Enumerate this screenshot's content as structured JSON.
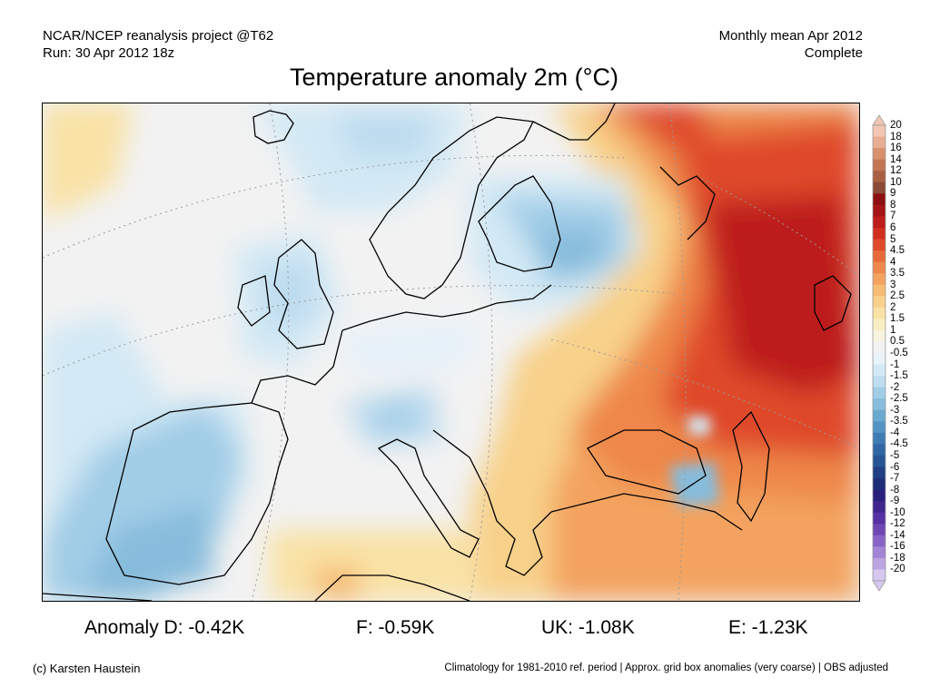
{
  "header": {
    "project": "NCAR/NCEP reanalysis project @T62",
    "run": "Run: 30 Apr 2012 18z",
    "period": "Monthly mean Apr 2012",
    "status": "Complete"
  },
  "title": "Temperature anomaly 2m (°C)",
  "map": {
    "region": "Europe",
    "variable": "2m temperature anomaly",
    "features": [
      {
        "name": "warm-anomaly-russia",
        "level": 7
      },
      {
        "name": "warm-anomaly-north-russia",
        "level": 7
      },
      {
        "name": "warm-anomaly-turkey",
        "level": 2.5
      },
      {
        "name": "warm-anomaly-balkans",
        "level": 1.5
      },
      {
        "name": "cold-anomaly-iberia",
        "level": -2.5
      },
      {
        "name": "cold-anomaly-finland",
        "level": -2
      },
      {
        "name": "cold-anomaly-uk",
        "level": -1.5
      },
      {
        "name": "cold-anomaly-alps",
        "level": -2
      }
    ]
  },
  "colorbar": {
    "labels": [
      "20",
      "18",
      "16",
      "14",
      "12",
      "10",
      "9",
      "8",
      "7",
      "6",
      "5",
      "4.5",
      "4",
      "3.5",
      "3",
      "2.5",
      "2",
      "1.5",
      "1",
      "0.5",
      "-0.5",
      "-1",
      "-1.5",
      "-2",
      "-2.5",
      "-3",
      "-3.5",
      "-4",
      "-4.5",
      "-5",
      "-6",
      "-7",
      "-8",
      "-9",
      "-10",
      "-12",
      "-14",
      "-16",
      "-18",
      "-20"
    ],
    "colors": [
      "#f3c6b2",
      "#e9ad92",
      "#d8906d",
      "#c47654",
      "#a95f42",
      "#8a4a35",
      "#8c0f12",
      "#a51517",
      "#bd1d1b",
      "#d12e22",
      "#df4a2a",
      "#e76a3a",
      "#ee874a",
      "#f3a35e",
      "#f6bc73",
      "#f8d18a",
      "#f9e2a5",
      "#f9eec3",
      "#f7f3df",
      "#f2f2f2",
      "#e7f2fa",
      "#d3e9f5",
      "#bddcef",
      "#a2cde7",
      "#87bcdc",
      "#6ca9d0",
      "#5393c3",
      "#3f7cb4",
      "#3066a5",
      "#275496",
      "#213e86",
      "#1e2d79",
      "#2a1f7d",
      "#40258f",
      "#5631a3",
      "#6e47b5",
      "#8864c7",
      "#a384d6",
      "#bca5e3",
      "#d5c7f0"
    ]
  },
  "stats": {
    "d": "Anomaly D: -0.42K",
    "f": "F: -0.59K",
    "uk": "UK: -1.08K",
    "e": "E: -1.23K"
  },
  "footer": {
    "credit": "(c) Karsten Haustein",
    "note": "Climatology for 1981-2010 ref. period | Approx. grid box anomalies (very coarse) | OBS adjusted"
  }
}
